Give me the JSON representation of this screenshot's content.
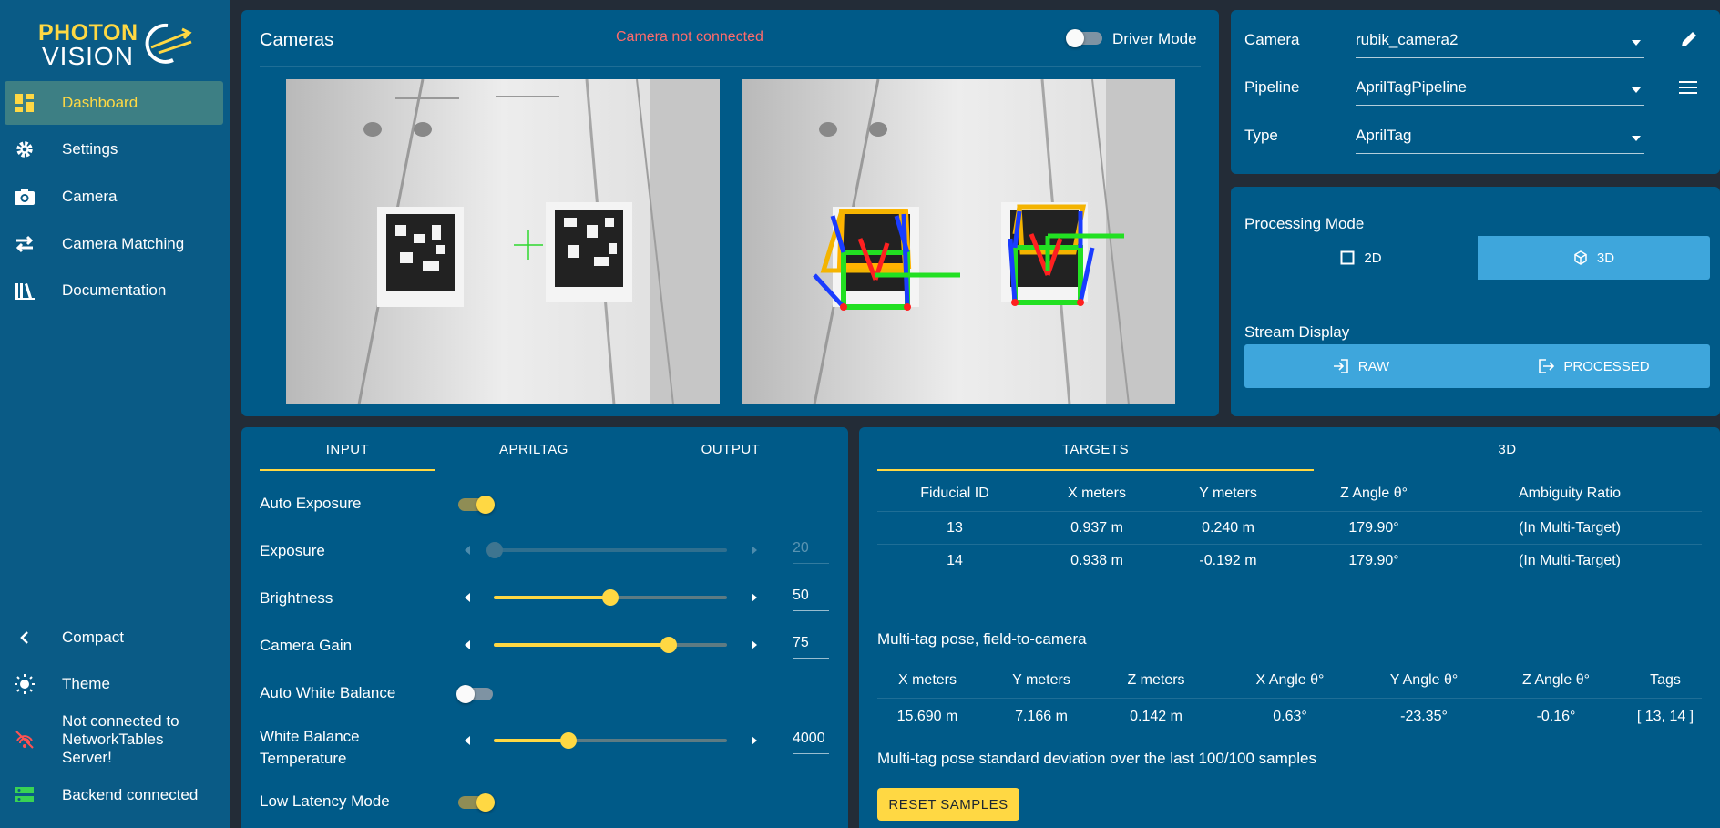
{
  "app": {
    "logo_line1": "PHOTON",
    "logo_line2": "VISION"
  },
  "sidebar": {
    "items": [
      {
        "label": "Dashboard",
        "icon": "dashboard-icon",
        "active": true
      },
      {
        "label": "Settings",
        "icon": "gear-icon"
      },
      {
        "label": "Camera",
        "icon": "camera-icon"
      },
      {
        "label": "Camera Matching",
        "icon": "swap-icon"
      },
      {
        "label": "Documentation",
        "icon": "library-icon"
      }
    ],
    "bottom": {
      "compact": "Compact",
      "theme": "Theme",
      "nt_status": [
        "Not connected to",
        "NetworkTables",
        "Server!"
      ],
      "backend_status": "Backend connected"
    }
  },
  "cameras_panel": {
    "title": "Cameras",
    "warning": "Camera not connected",
    "driver_mode_label": "Driver Mode",
    "driver_mode": false
  },
  "selectors": {
    "camera_label": "Camera",
    "camera_value": "rubik_camera2",
    "pipeline_label": "Pipeline",
    "pipeline_value": "AprilTagPipeline",
    "type_label": "Type",
    "type_value": "AprilTag"
  },
  "processing": {
    "mode_label": "Processing Mode",
    "mode_2d": "2D",
    "mode_3d": "3D",
    "stream_label": "Stream Display",
    "stream_raw": "RAW",
    "stream_processed": "PROCESSED"
  },
  "input_tabs": {
    "tabs": [
      "INPUT",
      "APRILTAG",
      "OUTPUT"
    ],
    "settings": {
      "auto_exposure": "Auto Exposure",
      "exposure": "Exposure",
      "exposure_value": "20",
      "brightness": "Brightness",
      "brightness_value": "50",
      "camera_gain": "Camera Gain",
      "camera_gain_value": "75",
      "auto_white_balance": "Auto White Balance",
      "wb_temp_line1": "White Balance",
      "wb_temp_line2": "Temperature",
      "wb_temp_value": "4000",
      "low_latency": "Low Latency Mode"
    },
    "levels": {
      "exposure_fraction": 0.0,
      "brightness_fraction": 0.5,
      "camera_gain_fraction": 0.75,
      "wb_fraction": 0.32
    }
  },
  "targets_panel": {
    "tabs": [
      "TARGETS",
      "3D"
    ],
    "headers": [
      "Fiducial ID",
      "X meters",
      "Y meters",
      "Z Angle θ°",
      "Ambiguity Ratio"
    ],
    "rows": [
      [
        "13",
        "0.937 m",
        "0.240 m",
        "179.90°",
        "(In Multi-Target)"
      ],
      [
        "14",
        "0.938 m",
        "-0.192 m",
        "179.90°",
        "(In Multi-Target)"
      ]
    ],
    "multitag_title": "Multi-tag pose, field-to-camera",
    "multitag_headers": [
      "X meters",
      "Y meters",
      "Z meters",
      "X Angle θ°",
      "Y Angle θ°",
      "Z Angle θ°",
      "Tags"
    ],
    "multitag_values": [
      "15.690 m",
      "7.166 m",
      "0.142 m",
      "0.63°",
      "-23.35°",
      "-0.16°",
      "[ 13, 14 ]"
    ],
    "stddev_title": "Multi-tag pose standard deviation over the last 100/100 samples",
    "reset_button": "RESET SAMPLES"
  },
  "colors": {
    "panel": "#005a88",
    "accent": "#ffd843",
    "warning": "#ff6b6b"
  }
}
